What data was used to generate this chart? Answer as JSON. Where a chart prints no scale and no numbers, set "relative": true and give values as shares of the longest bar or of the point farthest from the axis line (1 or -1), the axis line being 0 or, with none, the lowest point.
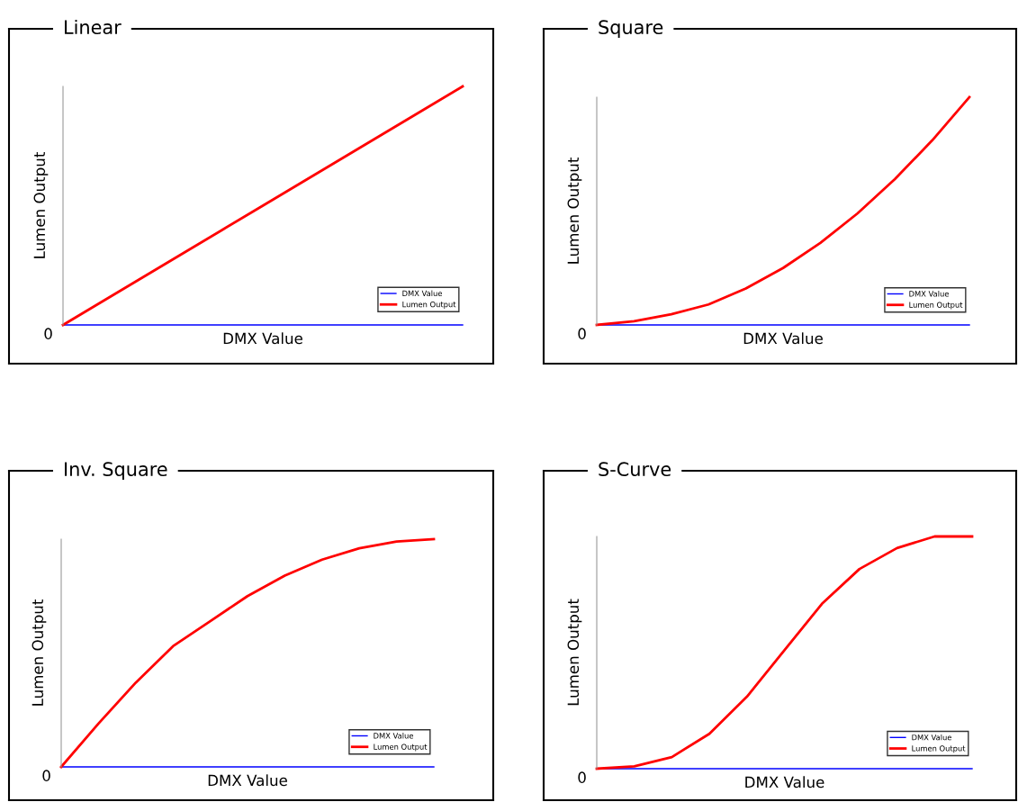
{
  "chart_data": [
    {
      "type": "line",
      "title": "Linear",
      "xlabel": "DMX Value",
      "ylabel": "Lumen Output",
      "relative": true,
      "legend": "bottom right",
      "grid": false,
      "tick_labels": false,
      "categories": [
        null,
        null,
        null,
        null,
        null,
        null,
        null,
        null,
        null,
        null,
        null
      ],
      "annotations": [
        "0"
      ],
      "series": [
        {
          "name": "DMX Value",
          "color": "#0000ff",
          "values": [
            0,
            0,
            0,
            0,
            0,
            0,
            0,
            0,
            0,
            0,
            0
          ]
        },
        {
          "name": "Lumen Output",
          "color": "#ff0000",
          "values": [
            0,
            0.1,
            0.2,
            0.3,
            0.4,
            0.5,
            0.6,
            0.7,
            0.8,
            0.9,
            1
          ]
        }
      ]
    },
    {
      "type": "line",
      "title": "Square",
      "xlabel": "DMX Value",
      "ylabel": "Lumen Output",
      "relative": true,
      "legend": "bottom right",
      "grid": false,
      "tick_labels": false,
      "categories": [
        null,
        null,
        null,
        null,
        null,
        null,
        null,
        null,
        null,
        null,
        null
      ],
      "annotations": [
        "0"
      ],
      "series": [
        {
          "name": "DMX Value",
          "color": "#0000ff",
          "values": [
            0,
            0,
            0,
            0,
            0,
            0,
            0,
            0,
            0,
            0,
            0
          ]
        },
        {
          "name": "Lumen Output",
          "color": "#ff0000",
          "values": [
            0,
            0.016,
            0.047,
            0.09,
            0.16,
            0.25,
            0.36,
            0.49,
            0.64,
            0.81,
            1
          ]
        }
      ]
    },
    {
      "type": "line",
      "title": "Inv. Square",
      "xlabel": "DMX Value",
      "ylabel": "Lumen Output",
      "relative": true,
      "legend": "bottom right",
      "grid": false,
      "tick_labels": false,
      "categories": [
        null,
        null,
        null,
        null,
        null,
        null,
        null,
        null,
        null,
        null,
        null
      ],
      "annotations": [
        "0"
      ],
      "series": [
        {
          "name": "DMX Value",
          "color": "#0000ff",
          "values": [
            0,
            0,
            0,
            0,
            0,
            0,
            0,
            0,
            0,
            0,
            0
          ]
        },
        {
          "name": "Lumen Output",
          "color": "#ff0000",
          "values": [
            0,
            0.19,
            0.37,
            0.53,
            0.64,
            0.75,
            0.84,
            0.91,
            0.96,
            0.99,
            1
          ]
        }
      ]
    },
    {
      "type": "line",
      "title": "S-Curve",
      "xlabel": "DMX Value",
      "ylabel": "Lumen Output",
      "relative": true,
      "legend": "bottom right",
      "grid": false,
      "tick_labels": false,
      "categories": [
        null,
        null,
        null,
        null,
        null,
        null,
        null,
        null,
        null,
        null,
        null
      ],
      "annotations": [
        "0"
      ],
      "series": [
        {
          "name": "DMX Value",
          "color": "#0000ff",
          "values": [
            0,
            0,
            0,
            0,
            0,
            0,
            0,
            0,
            0,
            0,
            0
          ]
        },
        {
          "name": "Lumen Output",
          "color": "#ff0000",
          "values": [
            0,
            0.01,
            0.05,
            0.15,
            0.31,
            0.51,
            0.71,
            0.86,
            0.95,
            1,
            1
          ]
        }
      ]
    }
  ]
}
